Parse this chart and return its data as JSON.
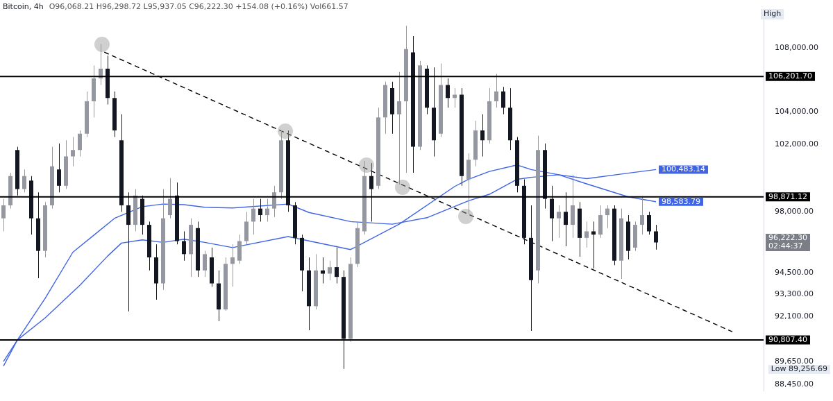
{
  "chart_data": {
    "type": "candlestick",
    "title": "Bitcoin, 4h",
    "subtitle": "O96,068.21 H96,298.72 L95,937.05 C96,222.30 +154.08 (+0.16%) Vol661.57",
    "categories": [
      null,
      null,
      null,
      null,
      null,
      null,
      null,
      null,
      null,
      null,
      null,
      null,
      null,
      null,
      null,
      null,
      null,
      null,
      null,
      null,
      null,
      null,
      null,
      null,
      null,
      null,
      null,
      null,
      null,
      null,
      null,
      null,
      null,
      null,
      null,
      null,
      null,
      null,
      null,
      null,
      null,
      null,
      null,
      null,
      null,
      null,
      null,
      null,
      null,
      null,
      null,
      null,
      null,
      null,
      null,
      null,
      null,
      null,
      null,
      null,
      null,
      null,
      null,
      null,
      null,
      null,
      null,
      null,
      null,
      null,
      null,
      null,
      null,
      null,
      null,
      null,
      null,
      null,
      null,
      null,
      null,
      null,
      null,
      null,
      null,
      null,
      null,
      null,
      null,
      null,
      null,
      null,
      null,
      null,
      null,
      null,
      null,
      null,
      null,
      null,
      null,
      null,
      null,
      null,
      null,
      null,
      null,
      null,
      null,
      null
    ],
    "ohlc": [
      [
        97612,
        98751,
        96860,
        98370
      ],
      [
        98370,
        100291,
        98180,
        100098
      ],
      [
        101658,
        101854,
        98943,
        99326
      ],
      [
        99326,
        100486,
        99134,
        100098
      ],
      [
        99827,
        100098,
        96673,
        97612
      ],
      [
        97612,
        99134,
        94200,
        95743
      ],
      [
        95743,
        98560,
        95373,
        98370
      ],
      [
        98370,
        101854,
        98180,
        100680
      ],
      [
        100486,
        102052,
        99134,
        99518
      ],
      [
        99518,
        102249,
        99326,
        101265
      ],
      [
        101265,
        102447,
        100680,
        101658
      ],
      [
        101658,
        102844,
        101265,
        102645
      ],
      [
        102645,
        105258,
        102447,
        104649
      ],
      [
        104649,
        106899,
        103642,
        106075
      ],
      [
        106075,
        108270,
        105666,
        106692
      ],
      [
        106692,
        107521,
        104447,
        104852
      ],
      [
        104852,
        105258,
        102447,
        102844
      ],
      [
        102249,
        103843,
        97991,
        98370
      ],
      [
        98370,
        99134,
        92360,
        97236
      ],
      [
        97236,
        99326,
        96860,
        98943
      ],
      [
        98751,
        98943,
        96673,
        97236
      ],
      [
        97236,
        97424,
        94638,
        95373
      ],
      [
        95373,
        96114,
        93006,
        93909
      ],
      [
        93909,
        99326,
        93547,
        97612
      ],
      [
        97801,
        99981,
        97612,
        98751
      ],
      [
        98943,
        99711,
        96114,
        96300
      ],
      [
        96300,
        96860,
        95189,
        95558
      ],
      [
        95558,
        97612,
        94273,
        97236
      ],
      [
        97048,
        97424,
        94273,
        94638
      ],
      [
        94638,
        95743,
        94273,
        95558
      ],
      [
        95373,
        95928,
        93728,
        93909
      ],
      [
        93909,
        94638,
        91826,
        92468
      ],
      [
        92468,
        95373,
        92397,
        95005
      ],
      [
        95005,
        96114,
        93728,
        95373
      ],
      [
        95189,
        96673,
        95005,
        96300
      ],
      [
        96300,
        97991,
        96114,
        97424
      ],
      [
        97424,
        98751,
        96673,
        98180
      ],
      [
        98180,
        98751,
        97424,
        97801
      ],
      [
        97801,
        98751,
        97424,
        98180
      ],
      [
        98180,
        99518,
        97688,
        99134
      ],
      [
        99134,
        102844,
        98751,
        102249
      ],
      [
        102249,
        102844,
        97991,
        98370
      ],
      [
        98370,
        98560,
        96114,
        96486
      ],
      [
        96486,
        96673,
        93475,
        94638
      ],
      [
        94638,
        95373,
        91330,
        92647
      ],
      [
        92647,
        95558,
        92468,
        94638
      ],
      [
        94638,
        95373,
        93909,
        94455
      ],
      [
        94455,
        95189,
        94091,
        94821
      ],
      [
        94821,
        95928,
        93909,
        94273
      ],
      [
        94273,
        94638,
        89256.69,
        90872
      ],
      [
        90872,
        95373,
        90697,
        95005
      ],
      [
        95005,
        97424,
        94821,
        97048
      ],
      [
        96860,
        100991,
        96673,
        100098
      ],
      [
        100098,
        100874,
        97424,
        99326
      ],
      [
        99518,
        104245,
        99326,
        103642
      ],
      [
        103642,
        105870,
        102645,
        105666
      ],
      [
        105462,
        105870,
        102645,
        103843
      ],
      [
        103843,
        106486,
        99595,
        104649
      ],
      [
        104649,
        109450,
        100291,
        107937
      ],
      [
        107729,
        108775,
        100291,
        101854
      ],
      [
        101854,
        107189,
        101658,
        106899
      ],
      [
        106692,
        106899,
        103843,
        104245
      ],
      [
        104245,
        106775,
        101265,
        102249
      ],
      [
        102645,
        107023,
        102447,
        105666
      ],
      [
        105666,
        106075,
        104245,
        104852
      ],
      [
        104852,
        105462,
        104245,
        105055
      ],
      [
        105055,
        105462,
        99518,
        100098
      ],
      [
        99904,
        101461,
        97877,
        101070
      ],
      [
        101070,
        103442,
        100680,
        102844
      ],
      [
        102844,
        103843,
        101265,
        102249
      ],
      [
        102249,
        105462,
        102052,
        104649
      ],
      [
        104649,
        106363,
        104245,
        105258
      ],
      [
        105258,
        105543,
        103843,
        104245
      ],
      [
        104245,
        105462,
        101658,
        102249
      ],
      [
        102249,
        102447,
        99134,
        99518
      ],
      [
        99518,
        99904,
        96114,
        96486
      ],
      [
        96486,
        98370,
        91295,
        94091
      ],
      [
        94638,
        102526,
        93909,
        101658
      ],
      [
        101658,
        102052,
        98180,
        98751
      ],
      [
        98751,
        99518,
        96300,
        97612
      ],
      [
        97612,
        98370,
        96486,
        97991
      ],
      [
        97991,
        99134,
        96003,
        97236
      ],
      [
        97236,
        100175,
        96486,
        98370
      ],
      [
        98180,
        98560,
        95410,
        96486
      ],
      [
        96486,
        97424,
        95928,
        96860
      ],
      [
        96860,
        97424,
        94748,
        96673
      ],
      [
        96673,
        98370,
        96486,
        97801
      ],
      [
        97801,
        98370,
        97048,
        98180
      ],
      [
        98180,
        98370,
        94932,
        95189
      ],
      [
        95189,
        98180,
        94164,
        97612
      ],
      [
        97424,
        97801,
        95262,
        95743
      ],
      [
        95928,
        97424,
        95743,
        97236
      ],
      [
        97236,
        98866,
        96673,
        97801
      ],
      [
        97801,
        97991,
        96673,
        96860
      ],
      [
        96860,
        97236,
        95817,
        96222.3
      ],
      null,
      null,
      null,
      null,
      null,
      null,
      null,
      null,
      null,
      null,
      null,
      null,
      null,
      null,
      null
    ],
    "colors": [
      "#9598a1",
      "#9598a1",
      "#131722",
      "#9598a1",
      "#131722",
      "#131722",
      "#9598a1",
      "#9598a1",
      "#131722",
      "#9598a1",
      "#9598a1",
      "#9598a1",
      "#9598a1",
      "#9598a1",
      "#9598a1",
      "#131722",
      "#131722",
      "#131722",
      "#131722",
      "#9598a1",
      "#131722",
      "#131722",
      "#131722",
      "#9598a1",
      "#9598a1",
      "#131722",
      "#131722",
      "#9598a1",
      "#131722",
      "#9598a1",
      "#131722",
      "#131722",
      "#9598a1",
      "#9598a1",
      "#9598a1",
      "#9598a1",
      "#9598a1",
      "#131722",
      "#9598a1",
      "#9598a1",
      "#9598a1",
      "#131722",
      "#131722",
      "#131722",
      "#131722",
      "#9598a1",
      "#131722",
      "#9598a1",
      "#131722",
      "#131722",
      "#9598a1",
      "#9598a1",
      "#9598a1",
      "#131722",
      "#9598a1",
      "#9598a1",
      "#131722",
      "#9598a1",
      "#9598a1",
      "#131722",
      "#9598a1",
      "#131722",
      "#131722",
      "#9598a1",
      "#131722",
      "#9598a1",
      "#131722",
      "#9598a1",
      "#9598a1",
      "#131722",
      "#9598a1",
      "#9598a1",
      "#131722",
      "#131722",
      "#131722",
      "#131722",
      "#131722",
      "#9598a1",
      "#131722",
      "#131722",
      "#9598a1",
      "#131722",
      "#9598a1",
      "#131722",
      "#9598a1",
      "#131722",
      "#9598a1",
      "#9598a1",
      "#131722",
      "#9598a1",
      "#131722",
      "#9598a1",
      "#9598a1",
      "#131722",
      "#131722",
      null,
      null,
      null,
      null,
      null,
      null,
      null,
      null,
      null,
      null,
      null,
      null,
      null,
      null,
      null
    ],
    "series": [
      {
        "type": "line",
        "color": "#3f64e6",
        "values": [
          89652,
          null,
          90802,
          null,
          null,
          null,
          93078,
          null,
          null,
          null,
          95669,
          null,
          null,
          96635,
          null,
          null,
          97612,
          null,
          null,
          null,
          98294,
          null,
          null,
          98446,
          null,
          null,
          98408,
          null,
          null,
          98256,
          null,
          null,
          null,
          98218,
          null,
          null,
          null,
          null,
          null,
          null,
          null,
          98446,
          null,
          null,
          97953,
          null,
          null,
          null,
          null,
          null,
          97424,
          null,
          null,
          null,
          null,
          null,
          97273,
          null,
          null,
          null,
          null,
          97650,
          null,
          null,
          98142,
          null,
          null,
          98637,
          null,
          null,
          99019,
          null,
          null,
          null,
          99904,
          null,
          100020,
          null,
          null,
          null,
          100175,
          null,
          null,
          null,
          99943,
          null,
          null,
          null,
          null,
          100214,
          null,
          null,
          null,
          null,
          100483.14,
          null,
          null,
          null,
          null,
          null,
          null,
          null,
          null,
          null,
          null,
          null,
          null,
          null,
          null,
          null
        ],
        "value_labels": [
          null,
          null,
          null,
          null,
          null,
          null,
          null,
          null,
          null,
          null,
          null,
          null,
          null,
          null,
          null,
          null,
          null,
          null,
          null,
          null,
          null,
          null,
          null,
          null,
          null,
          null,
          null,
          null,
          null,
          null,
          null,
          null,
          null,
          null,
          null,
          null,
          null,
          null,
          null,
          null,
          null,
          null,
          null,
          null,
          null,
          null,
          null,
          null,
          null,
          null,
          null,
          null,
          null,
          null,
          null,
          null,
          null,
          null,
          null,
          null,
          null,
          null,
          null,
          null,
          null,
          null,
          null,
          null,
          null,
          null,
          null,
          null,
          null,
          null,
          null,
          null,
          null,
          null,
          null,
          null,
          null,
          null,
          null,
          null,
          null,
          null,
          null,
          null,
          null,
          null,
          null,
          null,
          null,
          null,
          "100,483.14",
          null,
          null,
          null,
          null,
          null,
          null,
          null,
          null,
          null,
          null,
          null,
          null,
          null,
          null,
          null
        ]
      },
      {
        "type": "line",
        "color": "#3f64e6",
        "values": [
          89409,
          null,
          90802,
          null,
          null,
          null,
          92004,
          null,
          null,
          null,
          null,
          93800,
          null,
          null,
          null,
          95447,
          null,
          96188,
          null,
          null,
          96374,
          null,
          null,
          96226,
          null,
          null,
          96412,
          null,
          null,
          96226,
          null,
          null,
          null,
          95928,
          null,
          null,
          null,
          null,
          null,
          null,
          null,
          96561,
          null,
          null,
          null,
          null,
          null,
          null,
          null,
          null,
          95817,
          null,
          null,
          null,
          null,
          null,
          null,
          97273,
          null,
          null,
          null,
          null,
          null,
          null,
          null,
          99480,
          null,
          99904,
          null,
          null,
          100369,
          null,
          null,
          null,
          100758,
          null,
          100486,
          null,
          null,
          null,
          100175,
          null,
          null,
          null,
          99633,
          null,
          null,
          null,
          null,
          null,
          98866,
          null,
          null,
          null,
          98583.79,
          null,
          null,
          null,
          null,
          null,
          null,
          null,
          null,
          null,
          null,
          null,
          null,
          null,
          null,
          null
        ],
        "value_labels": [
          null,
          null,
          null,
          null,
          null,
          null,
          null,
          null,
          null,
          null,
          null,
          null,
          null,
          null,
          null,
          null,
          null,
          null,
          null,
          null,
          null,
          null,
          null,
          null,
          null,
          null,
          null,
          null,
          null,
          null,
          null,
          null,
          null,
          null,
          null,
          null,
          null,
          null,
          null,
          null,
          null,
          null,
          null,
          null,
          null,
          null,
          null,
          null,
          null,
          null,
          null,
          null,
          null,
          null,
          null,
          null,
          null,
          null,
          null,
          null,
          null,
          null,
          null,
          null,
          null,
          null,
          null,
          null,
          null,
          null,
          null,
          null,
          null,
          null,
          null,
          null,
          null,
          null,
          null,
          null,
          null,
          null,
          null,
          null,
          null,
          null,
          null,
          null,
          null,
          null,
          null,
          null,
          null,
          null,
          "98,583.79",
          null,
          null,
          null,
          null,
          null,
          null,
          null,
          null,
          null,
          null,
          null,
          null,
          null,
          null,
          null
        ]
      },
      {
        "type": "line",
        "color": "#000000",
        "line_style": "dashed",
        "values": [
          null,
          null,
          null,
          null,
          null,
          null,
          null,
          null,
          null,
          null,
          null,
          null,
          null,
          null,
          107850,
          null,
          null,
          null,
          null,
          null,
          null,
          null,
          null,
          null,
          null,
          null,
          null,
          null,
          null,
          null,
          null,
          null,
          null,
          null,
          null,
          null,
          null,
          null,
          null,
          null,
          null,
          null,
          null,
          null,
          null,
          null,
          null,
          null,
          null,
          null,
          null,
          null,
          null,
          null,
          null,
          null,
          null,
          null,
          null,
          null,
          null,
          null,
          null,
          null,
          null,
          null,
          null,
          null,
          null,
          null,
          null,
          null,
          null,
          null,
          null,
          null,
          null,
          null,
          null,
          null,
          null,
          null,
          null,
          null,
          null,
          null,
          null,
          null,
          null,
          null,
          null,
          null,
          null,
          null,
          null,
          null,
          null,
          null,
          null,
          null,
          null,
          null,
          null,
          null,
          null,
          91250,
          null,
          null,
          null,
          null
        ]
      }
    ],
    "ylim": [
      88100,
      110470
    ],
    "yticks": [
      {
        "value": 108000,
        "label": "108,000.00"
      },
      {
        "value": 104000,
        "label": "104,000.00"
      },
      {
        "value": 102000,
        "label": "102,000.00"
      },
      {
        "value": 98000,
        "label": "98,000.00"
      },
      {
        "value": 94500,
        "label": "94,500.00"
      },
      {
        "value": 93300,
        "label": "93,300.00"
      },
      {
        "value": 92100,
        "label": "92,100.00"
      },
      {
        "value": 89650,
        "label": "89,650.00"
      },
      {
        "value": 88450,
        "label": "88,450.00"
      }
    ],
    "log": true,
    "marker": "none",
    "ref_lines": [
      {
        "axis": "y",
        "value": 106201.7,
        "label": "106,201.70",
        "color": "#000000"
      },
      {
        "axis": "y",
        "value": 98871.12,
        "label": "98,871.12",
        "color": "#000000"
      },
      {
        "axis": "y",
        "value": 90807.4,
        "label": "90,807.40",
        "color": "#000000"
      }
    ],
    "annotations": [
      "96,222.30\n02:44:37",
      "Low 89,256.69",
      "High"
    ]
  }
}
